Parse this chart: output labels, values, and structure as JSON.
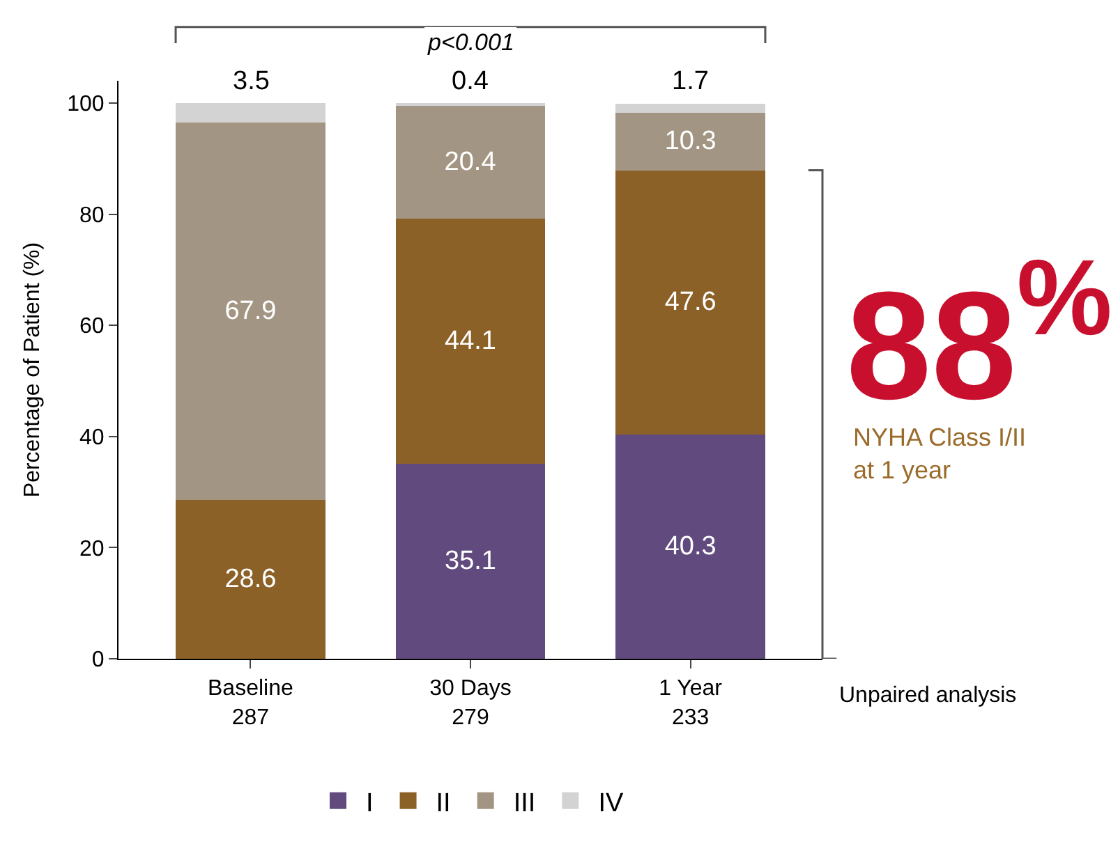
{
  "chart_data": {
    "type": "bar",
    "stacked": true,
    "categories": [
      "Baseline\n287",
      "30 Days\n279",
      "1 Year\n233"
    ],
    "ylabel": "Percentage of Patient (%)",
    "ylim": [
      0,
      104
    ],
    "yticks": [
      0,
      20,
      40,
      60,
      80,
      100
    ],
    "legend": "bottom",
    "series": [
      {
        "name": "I",
        "color": "#614b7e",
        "values": [
          0,
          35.1,
          40.3
        ],
        "value_labels": [
          null,
          "35.1",
          "40.3"
        ]
      },
      {
        "name": "II",
        "color": "#8c6128",
        "values": [
          28.6,
          44.1,
          47.6
        ],
        "value_labels": [
          "28.6",
          "44.1",
          "47.6"
        ]
      },
      {
        "name": "III",
        "color": "#a39583",
        "values": [
          67.9,
          20.4,
          10.3
        ],
        "value_labels": [
          "67.9",
          "20.4",
          "10.3"
        ]
      },
      {
        "name": "IV",
        "color": "#d3d3d3",
        "values": [
          3.5,
          0.4,
          1.7
        ],
        "value_labels": [
          "3.5",
          "0.4",
          "1.7"
        ]
      }
    ],
    "annotations": [
      "p<0.001",
      "88$^{%}$",
      "NYHA Class I/II\nat 1 year",
      "Unpaired analysis"
    ]
  }
}
